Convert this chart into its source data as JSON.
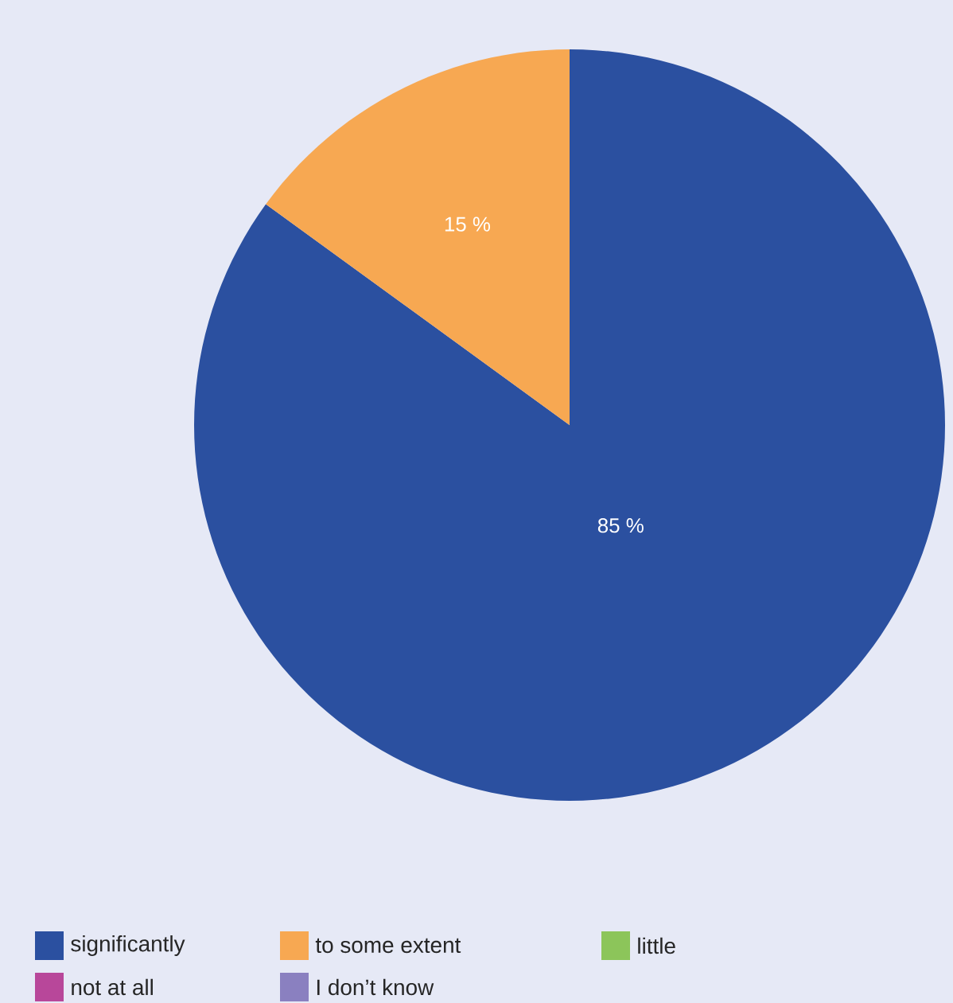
{
  "chart_data": {
    "type": "pie",
    "categories": [
      "significantly",
      "to some extent",
      "little",
      "not at all",
      "I don’t know"
    ],
    "values": [
      85,
      15,
      0,
      0,
      0
    ],
    "colors": [
      "#2b50a0",
      "#f7a852",
      "#8cc55a",
      "#b8479a",
      "#8a80c0"
    ],
    "value_labels": [
      "85 %",
      "15 %",
      null,
      null,
      null
    ],
    "legend": "bottom"
  }
}
